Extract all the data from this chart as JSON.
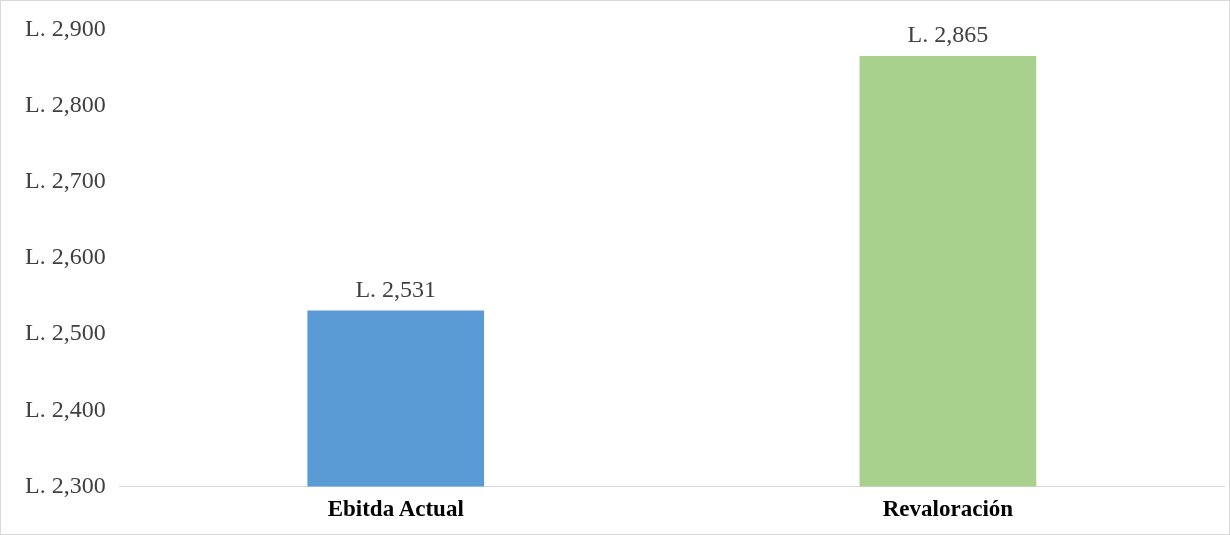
{
  "chart_data": {
    "type": "bar",
    "categories": [
      "Ebitda Actual",
      "Revaloración"
    ],
    "values": [
      2531,
      2865
    ],
    "colors": [
      "#5b9bd5",
      "#a9d18e"
    ],
    "value_labels": [
      "L. 2,531",
      "L. 2,865"
    ],
    "ylim": [
      2300,
      2900
    ],
    "yticks": [
      {
        "value": 2300,
        "label": "L. 2,300"
      },
      {
        "value": 2400,
        "label": "L. 2,400"
      },
      {
        "value": 2500,
        "label": "L. 2,500"
      },
      {
        "value": 2600,
        "label": "L. 2,600"
      },
      {
        "value": 2700,
        "label": "L. 2,700"
      },
      {
        "value": 2800,
        "label": "L. 2,800"
      },
      {
        "value": 2900,
        "label": "L. 2,900"
      }
    ],
    "grid": false,
    "legend": false
  }
}
